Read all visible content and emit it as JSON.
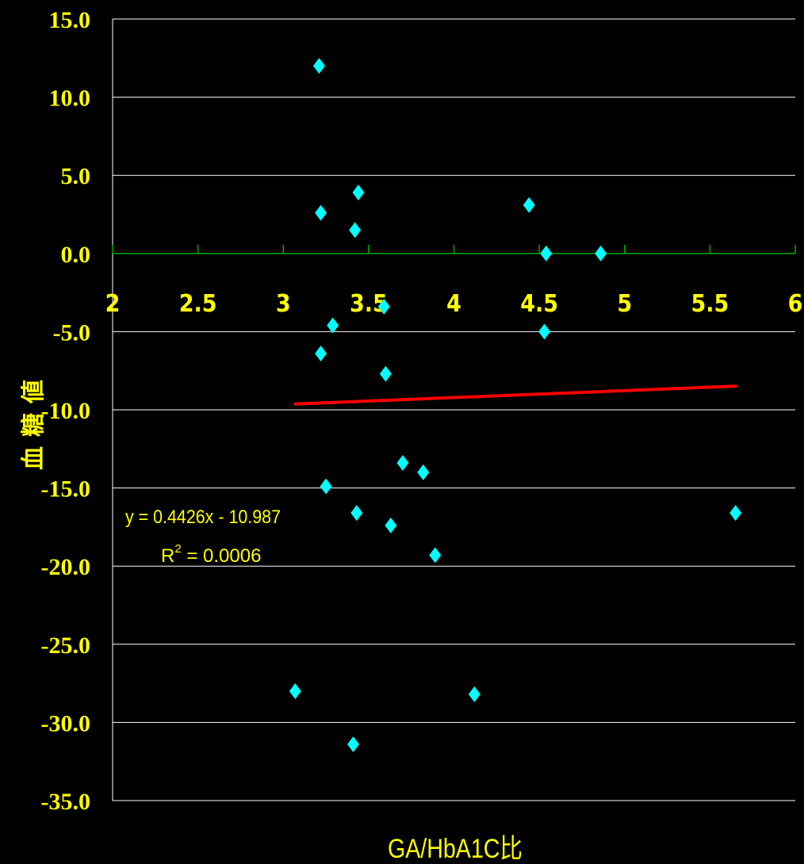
{
  "chart_data": {
    "type": "scatter",
    "xlabel": "GA/HbA1C比",
    "ylabel": "血糖値",
    "xlim": [
      2,
      6
    ],
    "ylim": [
      -35,
      15
    ],
    "x_ticks": [
      "2",
      "2.5",
      "3",
      "3.5",
      "4",
      "4.5",
      "5",
      "5.5",
      "6"
    ],
    "y_ticks": [
      "15.0",
      "10.0",
      "5.0",
      "0.0",
      "-5.0",
      "-10.0",
      "-15.0",
      "-20.0",
      "-25.0",
      "-30.0",
      "-35.0"
    ],
    "grid": true,
    "series": [
      {
        "marker": "diamond",
        "color": "#00ffff",
        "points": [
          {
            "x": 3.21,
            "y": 12.0
          },
          {
            "x": 3.22,
            "y": 2.6
          },
          {
            "x": 3.44,
            "y": 3.9
          },
          {
            "x": 3.42,
            "y": 1.5
          },
          {
            "x": 4.44,
            "y": 3.1
          },
          {
            "x": 4.54,
            "y": 0.0
          },
          {
            "x": 4.86,
            "y": 0.0
          },
          {
            "x": 3.59,
            "y": -3.4
          },
          {
            "x": 3.29,
            "y": -4.6
          },
          {
            "x": 4.53,
            "y": -5.0
          },
          {
            "x": 3.22,
            "y": -6.4
          },
          {
            "x": 3.6,
            "y": -7.7
          },
          {
            "x": 3.7,
            "y": -13.4
          },
          {
            "x": 3.82,
            "y": -14.0
          },
          {
            "x": 3.25,
            "y": -14.9
          },
          {
            "x": 3.43,
            "y": -16.6
          },
          {
            "x": 3.63,
            "y": -17.4
          },
          {
            "x": 5.65,
            "y": -16.6
          },
          {
            "x": 3.89,
            "y": -19.3
          },
          {
            "x": 3.07,
            "y": -28.0
          },
          {
            "x": 4.12,
            "y": -28.2
          },
          {
            "x": 3.41,
            "y": -31.4
          }
        ]
      }
    ],
    "trendline": {
      "color": "#ff0000",
      "slope": 0.4426,
      "intercept": -10.987,
      "x_range": [
        3.07,
        5.65
      ]
    },
    "annotations": {
      "equation": "y = 0.4426x - 10.987",
      "r2_prefix": "R",
      "r2_sup": "2",
      "r2_value": " = 0.0006"
    },
    "colors": {
      "background": "#000000",
      "text": "#ffff00",
      "gridline": "#ffffff",
      "zero_axis": "#00aa00",
      "marker": "#00ffff",
      "trendline": "#ff0000"
    }
  }
}
